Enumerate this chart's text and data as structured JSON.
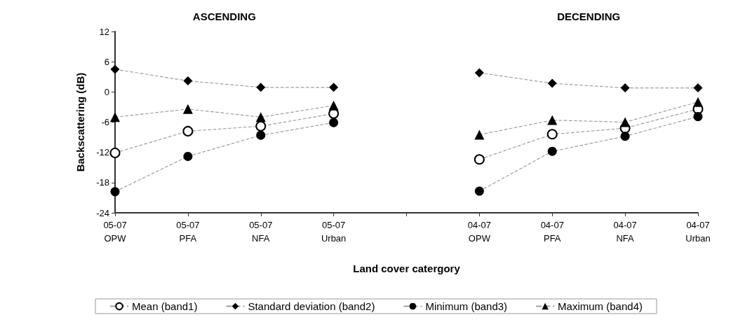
{
  "chart_data": {
    "type": "line",
    "annotations": [
      "ASCENDING",
      "DECENDING"
    ],
    "xlabel": "Land cover catergory",
    "ylabel": "Backscattering (dB)",
    "categories": [
      "05-07\nOPW",
      "05-07\nPFA",
      "05-07\nNFA",
      "05-07\nUrban",
      null,
      "04-07\nOPW",
      "04-07\nPFA",
      "04-07\nNFA",
      "04-07\nUrban"
    ],
    "series": [
      {
        "name": "Mean (band1)",
        "color": "#000000",
        "marker": "circle",
        "values": [
          -12.1,
          -7.8,
          -6.8,
          -4.3,
          null,
          -13.4,
          -8.4,
          -7.2,
          -3.4
        ]
      },
      {
        "name": "Standard deviation (band2)",
        "color": "#000000",
        "marker": "diamond",
        "values": [
          4.5,
          2.2,
          0.9,
          0.9,
          null,
          3.8,
          1.7,
          0.8,
          0.8
        ]
      },
      {
        "name": "Minimum (band3)",
        "color": "#000000",
        "marker": "circle",
        "values": [
          -19.8,
          -12.8,
          -8.6,
          -6.1,
          null,
          -19.7,
          -11.8,
          -8.8,
          -4.9
        ]
      },
      {
        "name": "Maximum (band4)",
        "color": "#000000",
        "marker": "triangle",
        "values": [
          -5.0,
          -3.4,
          -5.0,
          -2.7,
          null,
          -8.5,
          -5.6,
          -6.0,
          -2.0
        ]
      }
    ],
    "ylim": [
      -24,
      12
    ],
    "yticks": [
      -24,
      -18,
      -12,
      -6,
      0,
      6,
      12
    ],
    "grid": false,
    "legend": "bottom",
    "line_style": "dashed"
  }
}
